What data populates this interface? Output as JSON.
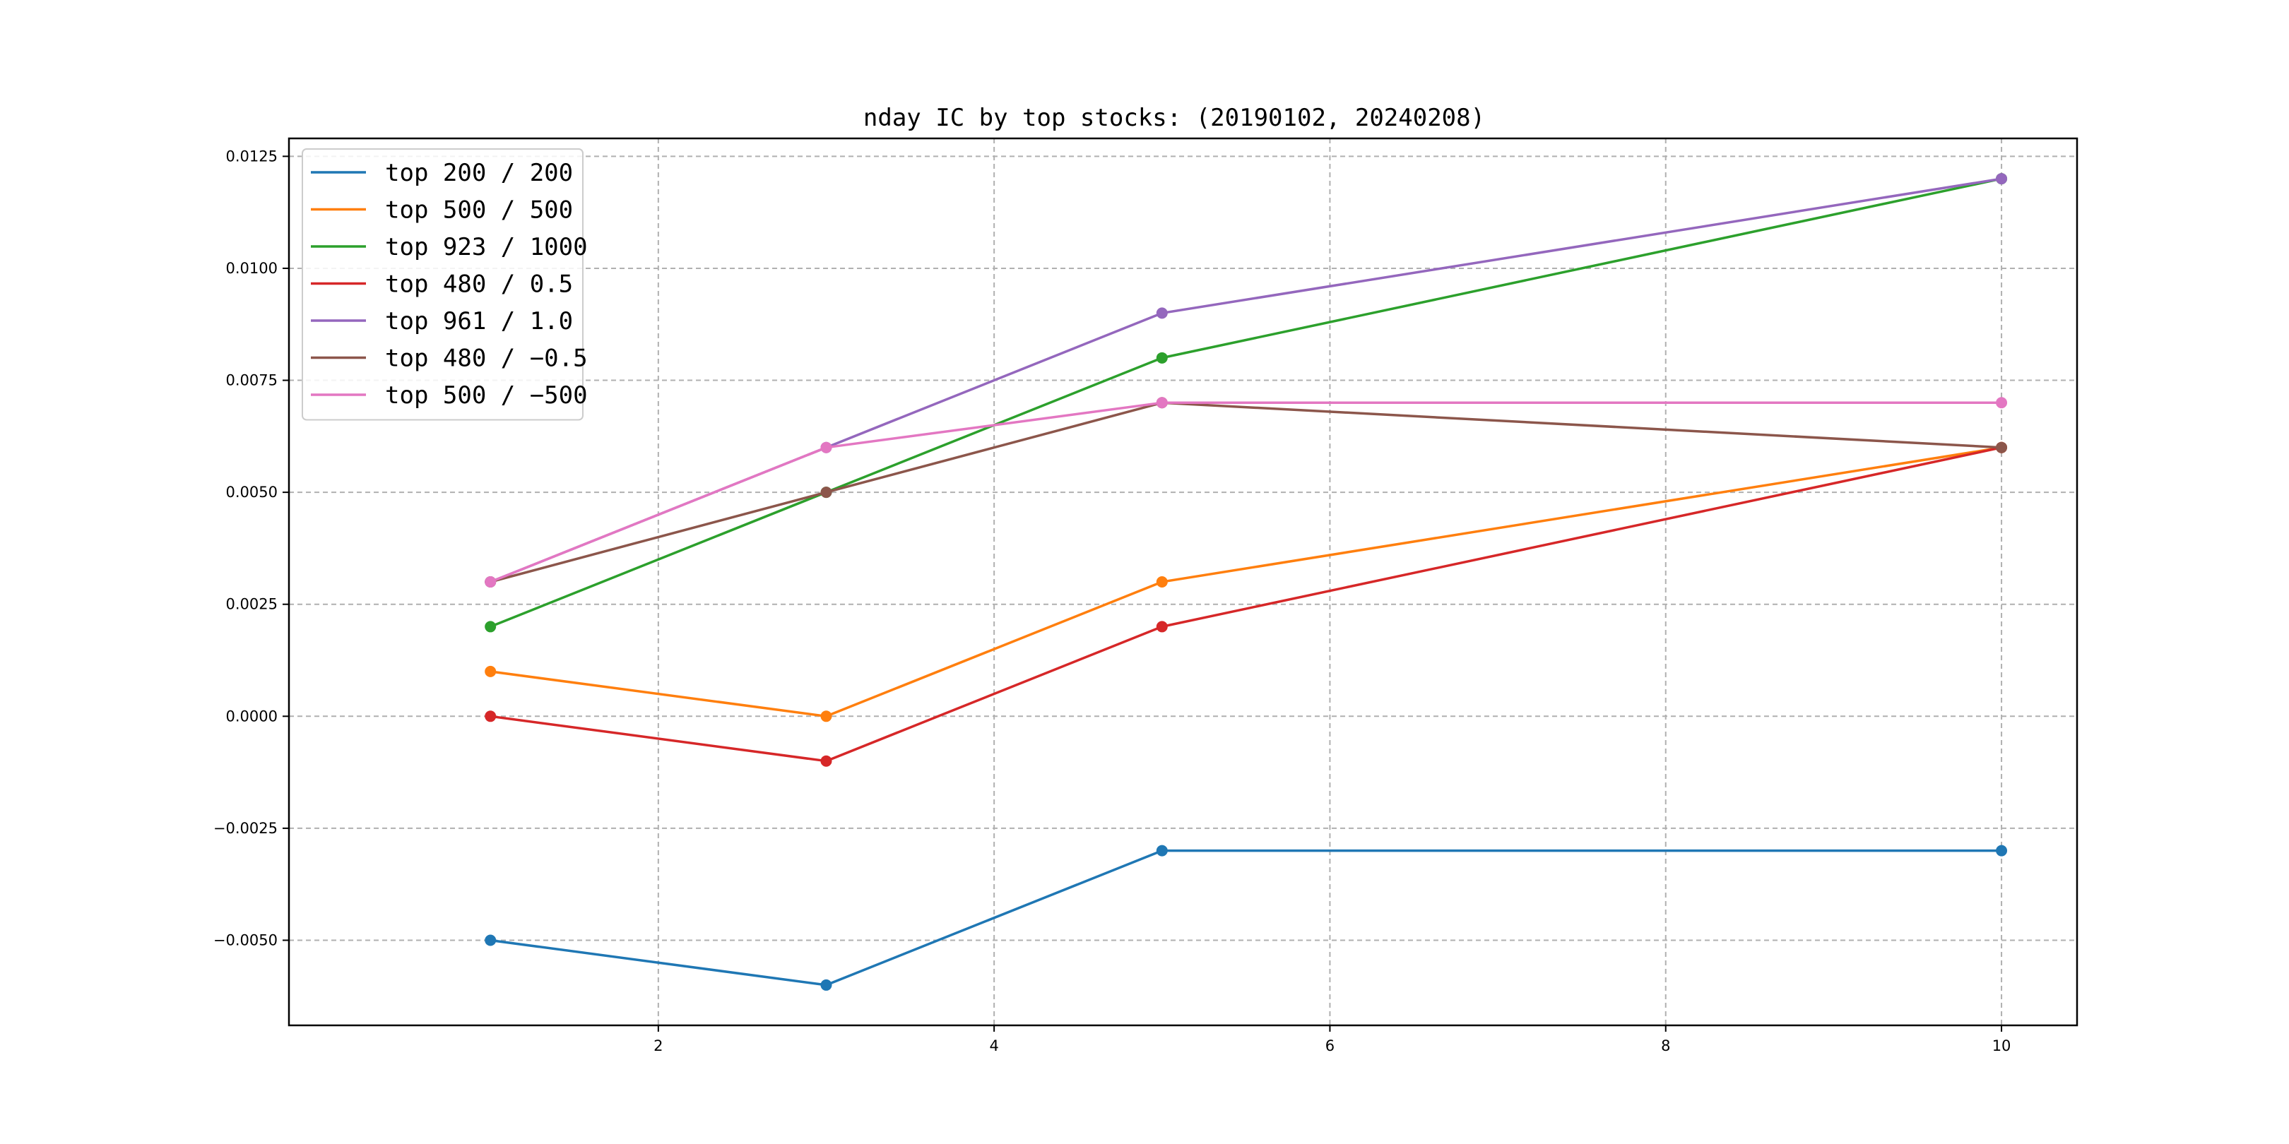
{
  "chart_data": {
    "type": "line",
    "title": "nday IC by top stocks: (20190102, 20240208)",
    "xlabel": "",
    "ylabel": "",
    "x": [
      1,
      3,
      5,
      10
    ],
    "xlim": [
      -0.2,
      10.45
    ],
    "ylim": [
      -0.0069,
      0.0129
    ],
    "xticks": [
      2,
      4,
      6,
      8,
      10
    ],
    "xtick_labels": [
      "2",
      "4",
      "6",
      "8",
      "10"
    ],
    "yticks": [
      -0.005,
      -0.0025,
      0.0,
      0.0025,
      0.005,
      0.0075,
      0.01,
      0.0125
    ],
    "ytick_labels": [
      "−0.0050",
      "−0.0025",
      "0.0000",
      "0.0025",
      "0.0050",
      "0.0075",
      "0.0100",
      "0.0125"
    ],
    "grid": true,
    "legend_position": "top-left",
    "series": [
      {
        "name": "top 200 / 200",
        "color": "#1f77b4",
        "values": [
          -0.005,
          -0.006,
          -0.003,
          -0.003
        ]
      },
      {
        "name": "top 500 / 500",
        "color": "#ff7f0e",
        "values": [
          0.001,
          0.0,
          0.003,
          0.006
        ]
      },
      {
        "name": "top 923 / 1000",
        "color": "#2ca02c",
        "values": [
          0.002,
          0.005,
          0.008,
          0.012
        ]
      },
      {
        "name": "top 480 / 0.5",
        "color": "#d62728",
        "values": [
          0.0,
          -0.001,
          0.002,
          0.006
        ]
      },
      {
        "name": "top 961 / 1.0",
        "color": "#9467bd",
        "values": [
          0.003,
          0.006,
          0.009,
          0.012
        ]
      },
      {
        "name": "top 480 / −0.5",
        "color": "#8c564b",
        "values": [
          0.003,
          0.005,
          0.007,
          0.006
        ]
      },
      {
        "name": "top 500 / −500",
        "color": "#e377c2",
        "values": [
          0.003,
          0.006,
          0.007,
          0.007
        ]
      }
    ]
  }
}
